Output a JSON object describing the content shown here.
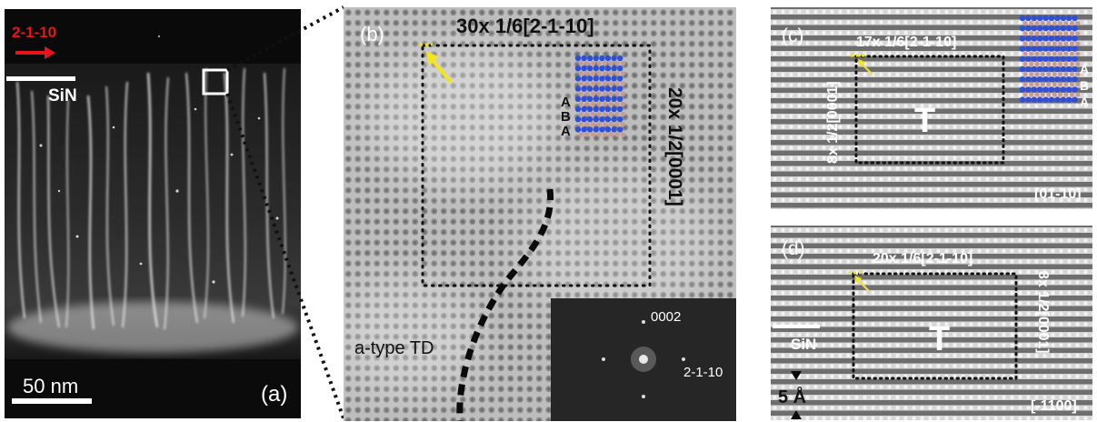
{
  "panel_a": {
    "direction_label": "2-1-10",
    "layer_label": "SiN",
    "scale_label": "50 nm",
    "panel_label": "(a)",
    "arrow_color": "#e8141b"
  },
  "panel_b": {
    "panel_label": "(b)",
    "top_label": "30x 1/6[2-1-10]",
    "side_label": "20x 1/2[0001]",
    "stacking": [
      "A",
      "B",
      "A"
    ],
    "td_label": "a-type TD",
    "fft_label_top": "0002",
    "fft_label_right": "2-1-10",
    "arrow_color": "#f2e51c"
  },
  "panel_c": {
    "panel_label": "(c)",
    "top_label": "17x 1/6[2-1-10]",
    "side_label": "8x 1/2[0001]",
    "center_label": "T",
    "stacking": [
      "A",
      "B",
      "A"
    ],
    "zone_axis": "[01-10]"
  },
  "panel_d": {
    "panel_label": "(d)",
    "top_label": "20x 1/6[2-1-10]",
    "side_label": "8x 1/2[0001]",
    "center_label": "T",
    "layer_label": "SiN",
    "scale_label": "5 Å",
    "zone_axis": "[-1100]"
  }
}
